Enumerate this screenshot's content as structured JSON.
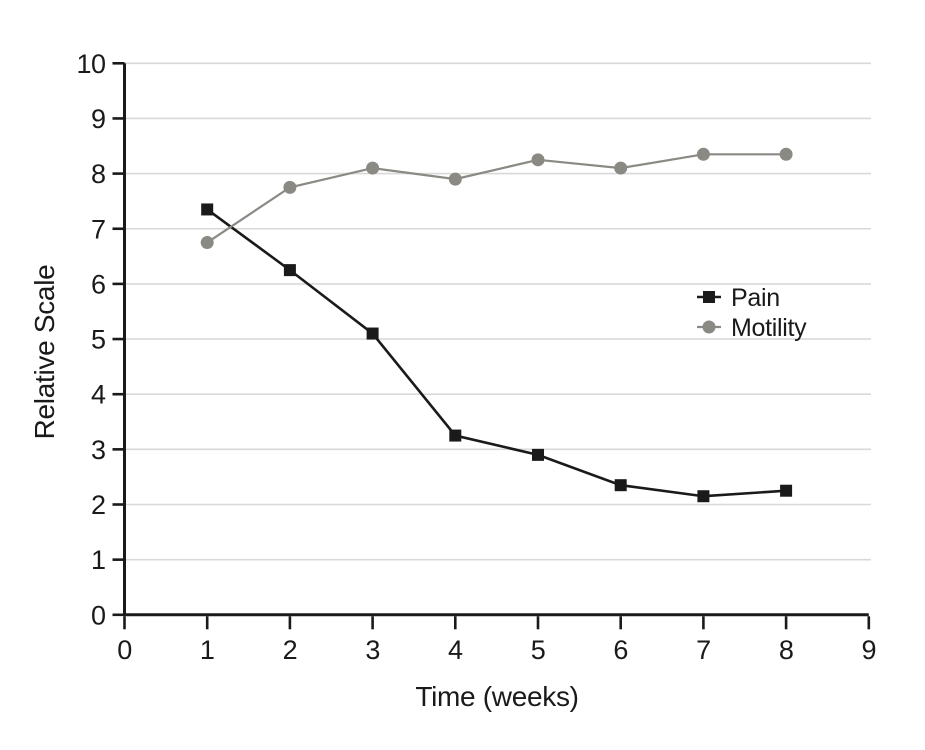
{
  "chart_data": {
    "type": "line",
    "title": "",
    "xlabel": "Time (weeks)",
    "ylabel": "Relative Scale",
    "x": [
      1,
      2,
      3,
      4,
      5,
      6,
      7,
      8
    ],
    "xlim": [
      0,
      9
    ],
    "ylim": [
      0,
      10
    ],
    "x_ticks": [
      0,
      1,
      2,
      3,
      4,
      5,
      6,
      7,
      8,
      9
    ],
    "y_ticks": [
      0,
      1,
      2,
      3,
      4,
      5,
      6,
      7,
      8,
      9,
      10
    ],
    "grid": "horizontal-only",
    "legend": {
      "position": "inside-right"
    },
    "series": [
      {
        "name": "Pain",
        "marker": "square",
        "color": "#1a1a1a",
        "values": [
          7.35,
          6.25,
          5.1,
          3.25,
          2.9,
          2.35,
          2.15,
          2.25
        ]
      },
      {
        "name": "Motility",
        "marker": "circle",
        "color": "#8b8983",
        "values": [
          6.75,
          7.75,
          8.1,
          7.9,
          8.25,
          8.1,
          8.35,
          8.35
        ]
      }
    ],
    "colors": {
      "grid": "#d9d9d9",
      "axis": "#1a1a1a",
      "background": "#ffffff"
    }
  }
}
